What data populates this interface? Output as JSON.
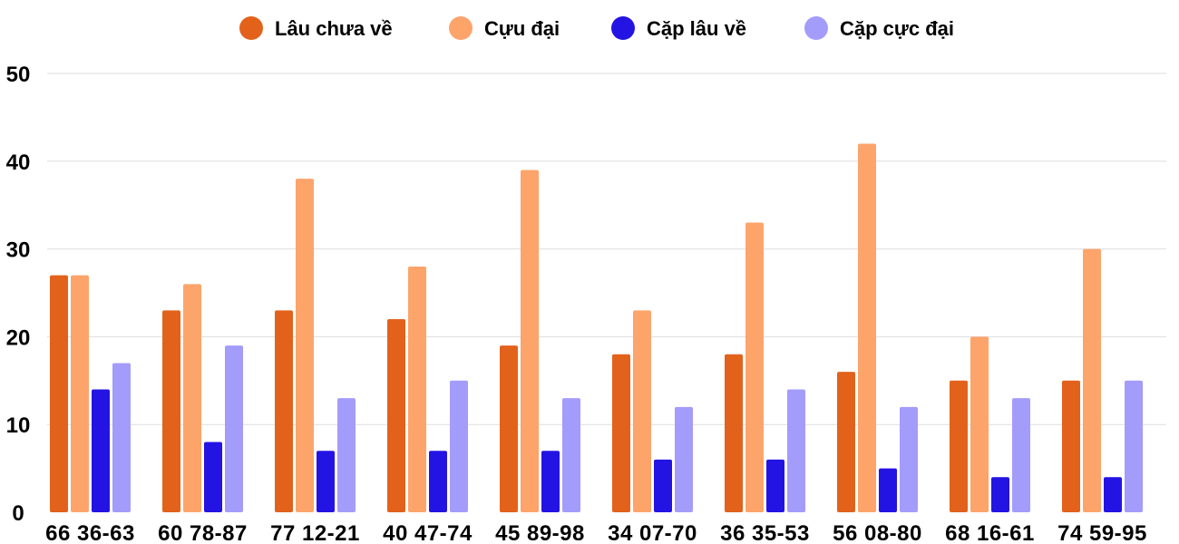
{
  "chart_data": {
    "type": "bar",
    "categories": [
      "66 36-63",
      "60 78-87",
      "77 12-21",
      "40 47-74",
      "45 89-98",
      "34 07-70",
      "36 35-53",
      "56 08-80",
      "68 16-61",
      "74 59-95"
    ],
    "series": [
      {
        "name": "Lâu chưa về",
        "color": "#e2621b",
        "values": [
          27,
          23,
          23,
          22,
          19,
          18,
          18,
          16,
          15,
          15
        ]
      },
      {
        "name": "Cựu đại",
        "color": "#fda46b",
        "values": [
          27,
          26,
          38,
          28,
          39,
          23,
          33,
          42,
          20,
          30
        ]
      },
      {
        "name": "Cặp lâu về",
        "color": "#2414e3",
        "values": [
          14,
          8,
          7,
          7,
          7,
          6,
          6,
          5,
          4,
          4
        ]
      },
      {
        "name": "Cặp cực đại",
        "color": "#a39cfb",
        "values": [
          17,
          19,
          13,
          15,
          13,
          12,
          14,
          12,
          13,
          15
        ]
      }
    ],
    "ylim": [
      0,
      50
    ],
    "yticks": [
      "0",
      "10",
      "20",
      "30",
      "40",
      "50"
    ],
    "grid": true,
    "legend_position": "top-center"
  }
}
